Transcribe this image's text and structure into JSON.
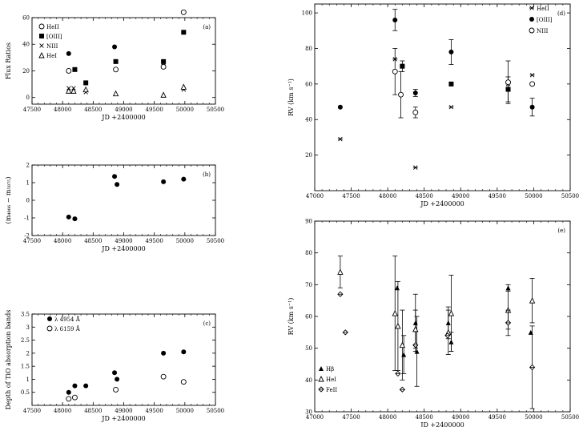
{
  "chart_data": [
    {
      "id": "a",
      "type": "scatter",
      "panel_label": "(a)",
      "ylabel": "Flux Ratios",
      "xlabel": "JD +2400000",
      "xlim": [
        47500,
        50500
      ],
      "ylim": [
        -5,
        60
      ],
      "xticks": [
        47500,
        48000,
        48500,
        49000,
        49500,
        50000,
        50500
      ],
      "yticks": [
        0,
        20,
        40,
        60
      ],
      "legend_position": "top-left",
      "series": [
        {
          "name": "HeII",
          "marker": "circle-open",
          "x": [
            48100,
            48870,
            49650,
            49980
          ],
          "y": [
            20,
            21,
            23,
            64
          ]
        },
        {
          "name": "[OIII]",
          "marker": "square-filled",
          "x": [
            48200,
            48380,
            48870,
            49650,
            49980
          ],
          "y": [
            21,
            11,
            27,
            27,
            49
          ]
        },
        {
          "name": "NIII",
          "marker": "cross",
          "x": [
            48100,
            48180,
            48380,
            49650,
            49980
          ],
          "y": [
            7,
            7,
            4,
            26,
            6
          ]
        },
        {
          "name": "HeI",
          "marker": "triangle-open",
          "x": [
            48100,
            48180,
            48380,
            48870,
            49650,
            49980
          ],
          "y": [
            5,
            5,
            6,
            3,
            2,
            8
          ]
        },
        {
          "name": "",
          "marker": "circle-filled",
          "x": [
            48100,
            48850
          ],
          "y": [
            33,
            38
          ]
        }
      ]
    },
    {
      "id": "b",
      "type": "scatter",
      "panel_label": "(b)",
      "ylabel": "(m₄₈₆₆ − m₅₈₇₅)",
      "xlabel": "JD +2400000",
      "xlim": [
        47500,
        50500
      ],
      "ylim": [
        -2,
        2
      ],
      "xticks": [
        47500,
        48000,
        48500,
        49000,
        49500,
        50000,
        50500
      ],
      "yticks": [
        -2,
        -1,
        0,
        1,
        2
      ],
      "series": [
        {
          "name": "",
          "marker": "circle-filled",
          "x": [
            48100,
            48200,
            48850,
            48890,
            49650,
            49980
          ],
          "y": [
            -0.95,
            -1.05,
            1.35,
            0.9,
            1.05,
            1.2
          ]
        }
      ]
    },
    {
      "id": "c",
      "type": "scatter",
      "panel_label": "(c)",
      "ylabel": "Depth of TiO absorption bands",
      "xlabel": "JD +2400000",
      "xlim": [
        47500,
        50500
      ],
      "ylim": [
        0,
        3.5
      ],
      "xticks": [
        47500,
        48000,
        48500,
        49000,
        49500,
        50000,
        50500
      ],
      "yticks": [
        0.5,
        1,
        1.5,
        2,
        2.5,
        3,
        3.5
      ],
      "legend_position": "top-left",
      "series": [
        {
          "name": "λ 4954 Å",
          "marker": "circle-filled",
          "x": [
            48100,
            48200,
            48380,
            48850,
            48890,
            49650,
            49980
          ],
          "y": [
            0.5,
            0.75,
            0.75,
            1.25,
            1.0,
            2.0,
            2.05
          ]
        },
        {
          "name": "λ 6159 Å",
          "marker": "circle-open",
          "x": [
            48100,
            48200,
            48870,
            49650,
            49980
          ],
          "y": [
            0.25,
            0.3,
            0.6,
            1.1,
            0.9
          ]
        }
      ]
    },
    {
      "id": "d",
      "type": "scatter",
      "panel_label": "(d)",
      "ylabel": "RV (km s⁻¹)",
      "xlabel": "JD +2400000",
      "xlim": [
        47000,
        50500
      ],
      "ylim": [
        0,
        105
      ],
      "xticks": [
        47000,
        47500,
        48000,
        48500,
        49000,
        49500,
        50000,
        50500
      ],
      "yticks": [
        20,
        40,
        60,
        80,
        100
      ],
      "legend_position": "top-right",
      "series": [
        {
          "name": "HeII",
          "marker": "star",
          "x": [
            47350,
            48100,
            48380,
            48870,
            49650,
            49980
          ],
          "y": [
            29,
            74,
            13,
            47,
            60,
            65
          ]
        },
        {
          "name": "[OIII]",
          "marker": "circle-filled",
          "x": [
            47350,
            48100,
            48200,
            48380,
            48870,
            49650,
            49980
          ],
          "y": [
            47,
            96,
            70,
            55,
            78,
            57,
            47
          ],
          "err": [
            0,
            6,
            3,
            2,
            7,
            7,
            5
          ]
        },
        {
          "name": "",
          "marker": "square-filled",
          "x": [
            48200,
            48870,
            49650
          ],
          "y": [
            70,
            60,
            57
          ]
        },
        {
          "name": "NIII",
          "marker": "circle-open",
          "x": [
            48100,
            48180,
            48380,
            49650,
            49980
          ],
          "y": [
            67,
            54,
            44,
            61,
            60
          ],
          "err": [
            13,
            13,
            3,
            12,
            0
          ]
        }
      ]
    },
    {
      "id": "e",
      "type": "scatter",
      "panel_label": "(e)",
      "ylabel": "RV (km s⁻¹)",
      "xlabel": "JD +2400000",
      "xlim": [
        47000,
        50500
      ],
      "ylim": [
        30,
        90
      ],
      "xticks": [
        47000,
        47500,
        48000,
        48500,
        49000,
        49500,
        50000,
        50500
      ],
      "yticks": [
        30,
        40,
        50,
        60,
        70,
        80,
        90
      ],
      "legend_position": "bottom-left",
      "series": [
        {
          "name": "Hβ",
          "marker": "triangle-filled",
          "x": [
            48130,
            48220,
            48380,
            48400,
            48830,
            48870,
            49650,
            49960
          ],
          "y": [
            69,
            48,
            58,
            49,
            58,
            52,
            69,
            55
          ],
          "err": [
            0,
            6,
            9,
            11,
            5,
            3,
            1,
            0
          ]
        },
        {
          "name": "HeI",
          "marker": "triangle-open",
          "x": [
            47350,
            48100,
            48140,
            48200,
            48380,
            48830,
            48870,
            49650,
            49980
          ],
          "y": [
            74,
            61,
            57,
            51,
            56,
            55,
            61,
            62,
            65
          ],
          "err": [
            5,
            18,
            14,
            11,
            6,
            7,
            12,
            6,
            7
          ]
        },
        {
          "name": "FeII",
          "marker": "diamond",
          "x": [
            47350,
            47420,
            48140,
            48200,
            48380,
            48820,
            49650,
            49980
          ],
          "y": [
            67,
            55,
            42,
            37,
            51,
            54,
            58,
            44
          ],
          "err": [
            0,
            0,
            0,
            0,
            0,
            0,
            4,
            13
          ]
        }
      ]
    }
  ]
}
